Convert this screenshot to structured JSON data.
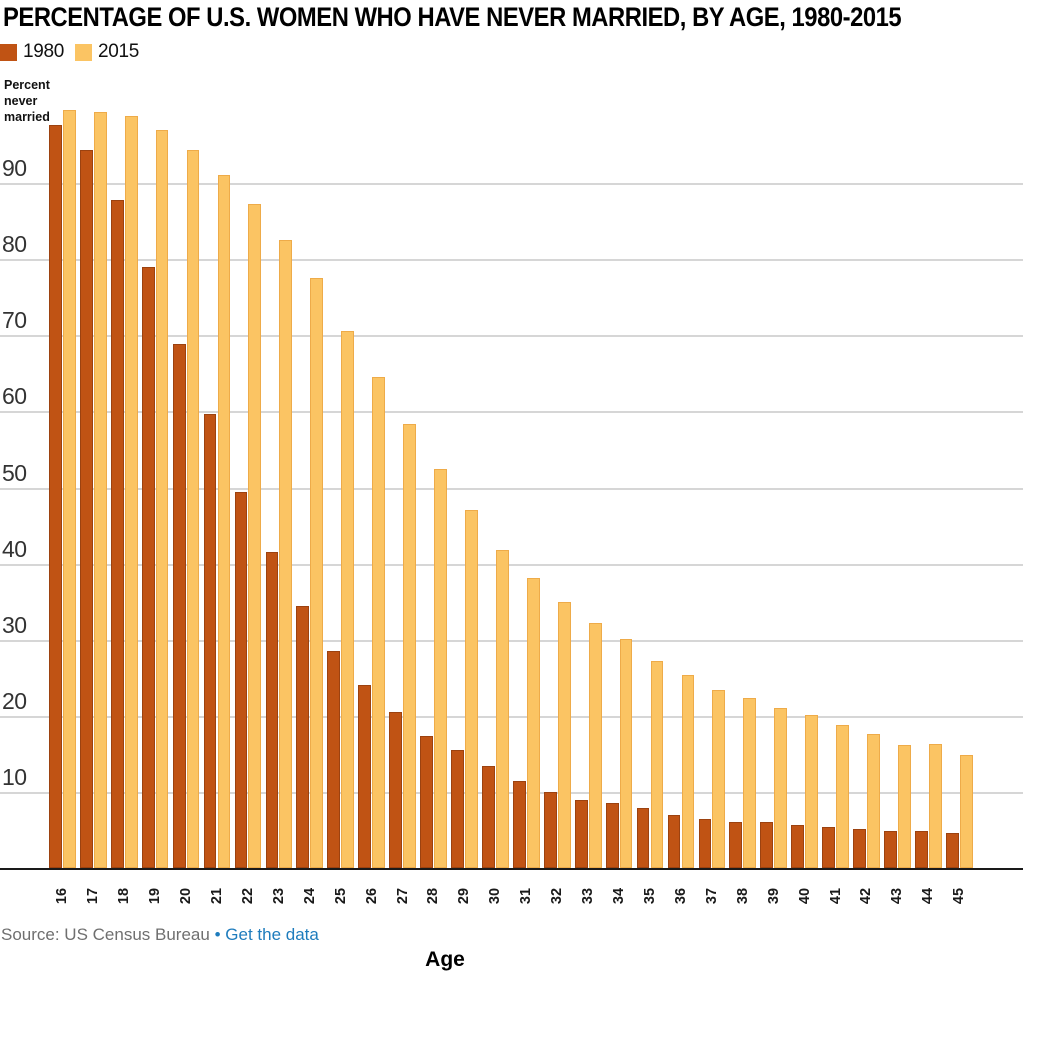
{
  "header": {
    "title": "PERCENTAGE OF U.S. WOMEN WHO HAVE NEVER MARRIED, BY AGE, 1980-2015"
  },
  "legend": {
    "items": [
      {
        "label": "1980",
        "color": "#c05314"
      },
      {
        "label": "2015",
        "color": "#fbc463"
      }
    ]
  },
  "y_axis_title": "Percent\nnever\nmarried",
  "x_axis_title": "Age",
  "source": {
    "prefix": "Source: US Census Bureau",
    "bullet": "•",
    "link_label": "Get the data"
  },
  "colors": {
    "bar_1980": "#c05314",
    "bar_1980_border": "#9c4210",
    "bar_2015": "#fbc463",
    "bar_2015_border": "#eeab49",
    "gridline": "#d6d6d6",
    "axis_line": "#1a1a1a",
    "link_blue": "#1e7cbd",
    "source_gray": "#6f6f6f"
  },
  "chart_data": {
    "type": "bar",
    "title": "PERCENTAGE OF U.S. WOMEN WHO HAVE NEVER MARRIED, BY AGE, 1980-2015",
    "xlabel": "Age",
    "ylabel": "Percent never married",
    "ylim": [
      0,
      100
    ],
    "yticks": [
      10,
      20,
      30,
      40,
      50,
      60,
      70,
      80,
      90
    ],
    "grid": "horizontal",
    "legend_position": "top-left",
    "categories": [
      16,
      17,
      18,
      19,
      20,
      21,
      22,
      23,
      24,
      25,
      26,
      27,
      28,
      29,
      30,
      31,
      32,
      33,
      34,
      35,
      36,
      37,
      38,
      39,
      40,
      41,
      42,
      43,
      44,
      45
    ],
    "series": [
      {
        "name": "1980",
        "color": "#c05314",
        "values": [
          97.6,
          94.3,
          87.8,
          79.0,
          68.8,
          59.6,
          49.4,
          41.5,
          34.4,
          28.5,
          24.0,
          20.5,
          17.3,
          15.5,
          13.4,
          11.4,
          10.0,
          9.0,
          8.5,
          7.9,
          7.0,
          6.4,
          6.1,
          6.0,
          5.7,
          5.4,
          5.1,
          4.9,
          4.8,
          4.6
        ]
      },
      {
        "name": "2015",
        "color": "#fbc463",
        "values": [
          99.6,
          99.3,
          98.8,
          97.0,
          94.3,
          91.0,
          87.2,
          82.5,
          77.5,
          70.5,
          64.5,
          58.4,
          52.4,
          47.1,
          41.8,
          38.1,
          34.9,
          32.2,
          30.1,
          27.2,
          25.3,
          23.4,
          22.3,
          21.0,
          20.1,
          18.8,
          17.6,
          16.2,
          16.3,
          14.9
        ]
      }
    ]
  }
}
